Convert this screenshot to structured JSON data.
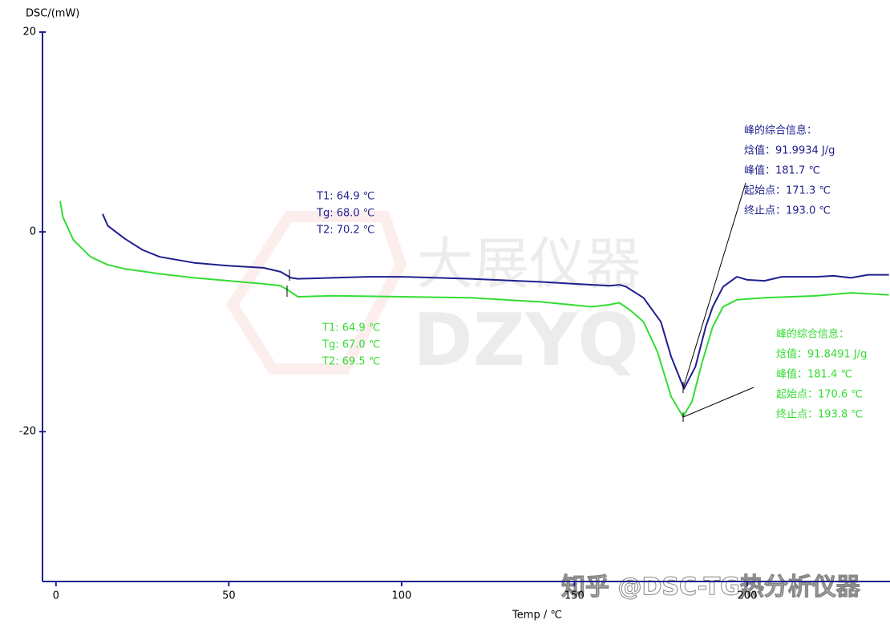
{
  "chart_data": {
    "type": "line",
    "ylabel": "DSC/(mW)",
    "xlabel": "Temp / ℃",
    "xlim": [
      -3.9,
      241.3
    ],
    "xticks": [
      0,
      50,
      100,
      150,
      200
    ],
    "ylim": [
      -35,
      20
    ],
    "yticks": [
      20,
      0,
      -20
    ],
    "series": [
      {
        "color": "#1f1f8f",
        "x": [
          13.5,
          15,
          20,
          25,
          30,
          40,
          50,
          60,
          65,
          68,
          70,
          80,
          90,
          100,
          120,
          140,
          150,
          160,
          163,
          165,
          170,
          175,
          178,
          181.7,
          185,
          188,
          190,
          193,
          197,
          200,
          205,
          210,
          220,
          225,
          230,
          235,
          241
        ],
        "values": [
          1.8,
          0.6,
          -0.7,
          -1.8,
          -2.5,
          -3.1,
          -3.4,
          -3.6,
          -4.0,
          -4.6,
          -4.7,
          -4.6,
          -4.5,
          -4.5,
          -4.7,
          -5.0,
          -5.2,
          -5.4,
          -5.3,
          -5.5,
          -6.6,
          -9.0,
          -12.5,
          -15.7,
          -13.5,
          -9.5,
          -7.5,
          -5.5,
          -4.5,
          -4.8,
          -4.9,
          -4.5,
          -4.5,
          -4.4,
          -4.6,
          -4.3,
          -4.3
        ]
      },
      {
        "color": "#33dd33",
        "x": [
          1.2,
          2,
          5,
          10,
          15,
          20,
          30,
          40,
          50,
          60,
          65,
          67,
          70,
          80,
          100,
          120,
          140,
          155,
          160,
          163,
          166,
          170,
          174,
          178,
          181.4,
          184,
          187,
          190,
          193,
          197,
          205,
          220,
          230,
          241
        ],
        "values": [
          3.1,
          1.5,
          -0.8,
          -2.5,
          -3.3,
          -3.7,
          -4.2,
          -4.6,
          -4.9,
          -5.2,
          -5.4,
          -5.8,
          -6.5,
          -6.4,
          -6.5,
          -6.6,
          -7.0,
          -7.5,
          -7.3,
          -7.1,
          -7.8,
          -9.0,
          -12.0,
          -16.5,
          -18.5,
          -17.0,
          -13.0,
          -9.5,
          -7.5,
          -6.8,
          -6.6,
          -6.4,
          -6.1,
          -6.3
        ]
      }
    ],
    "annotations": [
      {
        "color": "#1f1f8f",
        "lines": [
          "T1:  64.9 ℃",
          "Tg:  68.0 ℃",
          "T2:  70.2 ℃"
        ]
      },
      {
        "color": "#33dd33",
        "lines": [
          "T1:  64.9 ℃",
          "Tg:  67.0 ℃",
          "T2:  69.5 ℃"
        ]
      },
      {
        "color": "#1f1f8f",
        "lines": [
          "峰的综合信息：",
          "焓值：91.9934 J/g",
          "峰值：181.7 ℃",
          "起始点：171.3 ℃",
          "终止点：193.0 ℃"
        ]
      },
      {
        "color": "#33dd33",
        "lines": [
          "峰的综合信息：",
          "焓值：91.8491 J/g",
          "峰值：181.4 ℃",
          "起始点：170.6 ℃",
          "终止点：193.8 ℃"
        ]
      }
    ],
    "watermarks": [
      "大展仪器",
      "DZYQ",
      "知乎 @DSC-TG热分析仪器"
    ]
  }
}
